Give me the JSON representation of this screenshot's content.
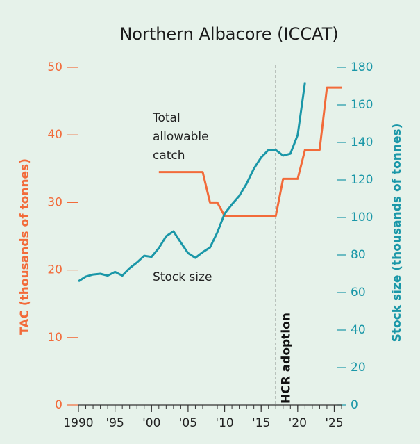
{
  "chart_data": {
    "type": "line",
    "title": "Northern Albacore (ICCAT)",
    "ylabel": "TAC (thousands of tonnes)",
    "y2label": "Stock size (thousands of tonnes)",
    "xlim": [
      1990,
      2026
    ],
    "xticks": [
      {
        "value": 1990,
        "label": "1990"
      },
      {
        "value": 1995,
        "label": "'95"
      },
      {
        "value": 2000,
        "label": "'00"
      },
      {
        "value": 2005,
        "label": "'05"
      },
      {
        "value": 2010,
        "label": "'10"
      },
      {
        "value": 2015,
        "label": "'15"
      },
      {
        "value": 2020,
        "label": "'20"
      },
      {
        "value": 2025,
        "label": "'25"
      }
    ],
    "xminorticks": [
      1990,
      1991,
      1992,
      1993,
      1994,
      1995,
      1996,
      1997,
      1998,
      1999,
      2000,
      2001,
      2002,
      2003,
      2004,
      2005,
      2006,
      2007,
      2008,
      2009,
      2010,
      2011,
      2012,
      2013,
      2014,
      2015,
      2016,
      2017,
      2018,
      2019,
      2020,
      2021,
      2022,
      2023,
      2024,
      2025,
      2026
    ],
    "ylim": [
      0,
      50
    ],
    "yticks": [
      0,
      10,
      20,
      30,
      40,
      50
    ],
    "y2lim": [
      0,
      180
    ],
    "y2ticks": [
      0,
      20,
      40,
      60,
      80,
      100,
      120,
      140,
      160,
      180
    ],
    "series": [
      {
        "name": "Total allowable catch",
        "label_lines": [
          "Total",
          "allowable",
          "catch"
        ],
        "color": "#f26b3a",
        "x": [
          2001,
          2002,
          2003,
          2004,
          2005,
          2006,
          2007,
          2008,
          2009,
          2010,
          2011,
          2012,
          2013,
          2014,
          2015,
          2016,
          2017,
          2018,
          2019,
          2020,
          2021,
          2022,
          2023,
          2024,
          2025,
          2026
        ],
        "values": [
          34.5,
          34.5,
          34.5,
          34.5,
          34.5,
          34.5,
          34.5,
          30,
          30,
          28,
          28,
          28,
          28,
          28,
          28,
          28,
          28,
          33.5,
          33.5,
          33.5,
          37.8,
          37.8,
          37.8,
          47,
          47,
          47
        ]
      },
      {
        "name": "Stock size",
        "color": "#1a97a8",
        "axis": "y2",
        "x": [
          1990,
          1991,
          1992,
          1993,
          1994,
          1995,
          1996,
          1997,
          1998,
          1999,
          2000,
          2001,
          2002,
          2003,
          2004,
          2005,
          2006,
          2007,
          2008,
          2009,
          2010,
          2011,
          2012,
          2013,
          2014,
          2015,
          2016,
          2017,
          2018,
          2019,
          2020,
          2021
        ],
        "values": [
          66,
          68.5,
          69.6,
          70,
          69,
          71,
          69,
          73,
          76,
          79.6,
          79,
          83.7,
          90,
          92.6,
          86.7,
          81,
          78.5,
          81.5,
          84,
          92,
          102,
          107,
          111.5,
          118,
          126,
          132,
          136,
          136,
          133,
          134,
          144,
          172
        ]
      }
    ],
    "annotations": [
      {
        "x": 2017,
        "text": "HCR adoption"
      }
    ]
  }
}
